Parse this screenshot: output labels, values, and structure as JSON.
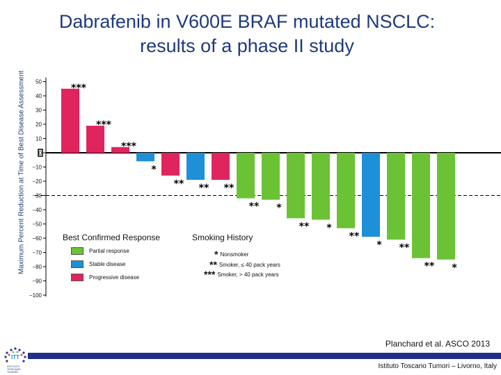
{
  "slide": {
    "title_line1": "Dabrafenib in V600E BRAF mutated NSCLC:",
    "title_line2": "results of a phase II study",
    "citation": "Planchard et al. ASCO 2013",
    "footer": "Istituto Toscano Tumori – Livorno, Italy",
    "logo_text_line1": "ISTITUTO",
    "logo_text_line2": "TOSCANO",
    "logo_text_line3": "TUMORI"
  },
  "chart_data": {
    "type": "bar",
    "title": "",
    "ylabel": "Maximum Percent Reduction at Time of Best Disease Assessment",
    "xlabel": "",
    "ylim": [
      -100,
      50
    ],
    "yticks": [
      50,
      40,
      30,
      20,
      10,
      0,
      -10,
      -20,
      -30,
      -40,
      -50,
      -60,
      -70,
      -80,
      -90,
      -100
    ],
    "ytick_labels": [
      "50",
      "40",
      "30",
      "20",
      "10",
      "0",
      "−10",
      "−20",
      "−30",
      "−40",
      "−50",
      "−60",
      "−70",
      "−80",
      "−90",
      "−100"
    ],
    "reference_line": -30,
    "response_colors": {
      "Progressive disease": "#e0245e",
      "Stable disease": "#1e90d8",
      "Partial response": "#6cc235"
    },
    "bars": [
      {
        "value": 45,
        "response": "Progressive disease",
        "smoking": "***"
      },
      {
        "value": 19,
        "response": "Progressive disease",
        "smoking": "***"
      },
      {
        "value": 4,
        "response": "Progressive disease",
        "smoking": "***"
      },
      {
        "value": -6,
        "response": "Stable disease",
        "smoking": "*"
      },
      {
        "value": -16,
        "response": "Progressive disease",
        "smoking": "**"
      },
      {
        "value": -19,
        "response": "Stable disease",
        "smoking": "**"
      },
      {
        "value": -19,
        "response": "Progressive disease",
        "smoking": "**"
      },
      {
        "value": -32,
        "response": "Partial response",
        "smoking": "**"
      },
      {
        "value": -33,
        "response": "Partial response",
        "smoking": "*"
      },
      {
        "value": -46,
        "response": "Partial response",
        "smoking": "**"
      },
      {
        "value": -47,
        "response": "Partial response",
        "smoking": "*"
      },
      {
        "value": -53,
        "response": "Partial response",
        "smoking": "**"
      },
      {
        "value": -59,
        "response": "Stable disease",
        "smoking": "*"
      },
      {
        "value": -61,
        "response": "Partial response",
        "smoking": "**"
      },
      {
        "value": -74,
        "response": "Partial response",
        "smoking": "**"
      },
      {
        "value": -75,
        "response": "Partial response",
        "smoking": "*"
      }
    ]
  },
  "legend": {
    "response_title": "Best Confirmed Response",
    "items": [
      {
        "label": "Partial response",
        "color": "#6cc235"
      },
      {
        "label": "Stable disease",
        "color": "#1e90d8"
      },
      {
        "label": "Progressive disease",
        "color": "#e0245e"
      }
    ],
    "smoking_title": "Smoking History",
    "smoking_items": [
      {
        "symbol": "*",
        "label": "Nonsmoker"
      },
      {
        "symbol": "**",
        "label": "Smoker, ≤ 40 pack years"
      },
      {
        "symbol": "***",
        "label": "Smoker, > 40 pack years"
      }
    ]
  }
}
